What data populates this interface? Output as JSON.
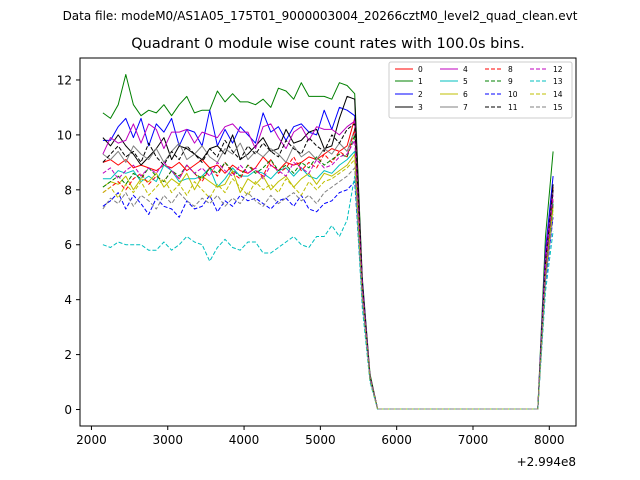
{
  "chart_data": {
    "type": "line",
    "suptitle": "Data file: modeM0/AS1A05_175T01_9000003004_20266cztM0_level2_quad_clean.evt",
    "title": "Quadrant 0 module wise count rates with 100.0s bins.",
    "xlabel": "",
    "ylabel": "",
    "x_offset_label": "+2.994e8",
    "xlim": [
      1850,
      8350
    ],
    "ylim": [
      -0.6,
      12.8
    ],
    "xticks": [
      2000,
      3000,
      4000,
      5000,
      6000,
      7000,
      8000
    ],
    "yticks": [
      0,
      2,
      4,
      6,
      8,
      10,
      12
    ],
    "legend_position": "top-right",
    "x": [
      2150,
      2250,
      2350,
      2450,
      2550,
      2650,
      2750,
      2850,
      2950,
      3050,
      3150,
      3250,
      3350,
      3450,
      3550,
      3650,
      3750,
      3850,
      3950,
      4050,
      4150,
      4250,
      4350,
      4450,
      4550,
      4650,
      4750,
      4850,
      4950,
      5050,
      5150,
      5250,
      5350,
      5450,
      5550,
      5650,
      5750,
      5850,
      5950,
      6050,
      6150,
      6250,
      6350,
      6450,
      6550,
      6650,
      6750,
      6850,
      6950,
      7050,
      7150,
      7250,
      7350,
      7450,
      7550,
      7650,
      7750,
      7850,
      7950,
      8050
    ],
    "series": [
      {
        "name": "0",
        "color": "#ff0000",
        "dash": false,
        "values": [
          9.0,
          9.1,
          8.9,
          9.1,
          8.8,
          8.9,
          8.8,
          8.7,
          8.9,
          8.8,
          9.0,
          8.7,
          8.9,
          9.1,
          8.8,
          8.9,
          8.6,
          8.9,
          8.7,
          8.6,
          8.8,
          9.2,
          8.9,
          8.7,
          9.0,
          8.9,
          9.0,
          9.2,
          9.1,
          9.3,
          9.5,
          9.4,
          9.6,
          10.6,
          4.5,
          1.2,
          0.02,
          0.02,
          0.02,
          0.02,
          0.02,
          0.02,
          0.02,
          0.02,
          0.02,
          0.02,
          0.02,
          0.02,
          0.02,
          0.02,
          0.02,
          0.02,
          0.02,
          0.02,
          0.02,
          0.02,
          0.02,
          0.02,
          5.2,
          8.1
        ]
      },
      {
        "name": "1",
        "color": "#008000",
        "dash": false,
        "values": [
          10.8,
          10.6,
          11.1,
          12.2,
          11.1,
          10.7,
          10.9,
          10.8,
          11.1,
          10.7,
          11.1,
          11.4,
          10.8,
          10.9,
          10.9,
          11.6,
          11.2,
          11.5,
          11.2,
          11.2,
          11.1,
          11.3,
          11.0,
          11.7,
          11.6,
          11.3,
          11.9,
          11.4,
          11.4,
          11.4,
          11.3,
          11.9,
          11.8,
          11.5,
          4.8,
          1.3,
          0.02,
          0.02,
          0.02,
          0.02,
          0.02,
          0.02,
          0.02,
          0.02,
          0.02,
          0.02,
          0.02,
          0.02,
          0.02,
          0.02,
          0.02,
          0.02,
          0.02,
          0.02,
          0.02,
          0.02,
          0.02,
          0.02,
          6.3,
          9.4
        ]
      },
      {
        "name": "2",
        "color": "#0000ff",
        "dash": false,
        "values": [
          9.8,
          9.8,
          10.3,
          10.6,
          9.9,
          10.6,
          9.6,
          10.4,
          10.1,
          10.6,
          9.6,
          10.2,
          10.1,
          9.6,
          10.9,
          9.6,
          10.2,
          9.7,
          10.3,
          10.0,
          9.7,
          10.8,
          10.1,
          10.3,
          9.8,
          10.3,
          10.4,
          10.1,
          10.0,
          10.9,
          10.2,
          11.0,
          10.9,
          10.7,
          4.7,
          1.2,
          0.02,
          0.02,
          0.02,
          0.02,
          0.02,
          0.02,
          0.02,
          0.02,
          0.02,
          0.02,
          0.02,
          0.02,
          0.02,
          0.02,
          0.02,
          0.02,
          0.02,
          0.02,
          0.02,
          0.02,
          0.02,
          0.02,
          5.8,
          8.5
        ]
      },
      {
        "name": "3",
        "color": "#000000",
        "dash": false,
        "values": [
          9.9,
          9.6,
          10.0,
          9.6,
          9.3,
          8.9,
          9.2,
          9.5,
          9.9,
          9.1,
          9.6,
          9.5,
          9.3,
          9.1,
          9.5,
          9.6,
          9.3,
          10.0,
          9.1,
          9.3,
          9.6,
          9.9,
          9.4,
          9.5,
          10.2,
          9.7,
          9.8,
          10.1,
          10.2,
          9.5,
          9.6,
          10.6,
          11.4,
          11.3,
          4.6,
          1.2,
          0.02,
          0.02,
          0.02,
          0.02,
          0.02,
          0.02,
          0.02,
          0.02,
          0.02,
          0.02,
          0.02,
          0.02,
          0.02,
          0.02,
          0.02,
          0.02,
          0.02,
          0.02,
          0.02,
          0.02,
          0.02,
          0.02,
          5.4,
          8.2
        ]
      },
      {
        "name": "4",
        "color": "#bf00bf",
        "dash": false,
        "values": [
          9.3,
          9.9,
          9.7,
          9.8,
          10.4,
          9.7,
          10.4,
          10.2,
          9.5,
          10.1,
          10.1,
          10.2,
          9.7,
          10.1,
          10.0,
          9.9,
          10.3,
          10.4,
          10.1,
          10.1,
          9.5,
          10.3,
          10.4,
          9.9,
          9.5,
          10.1,
          10.3,
          9.8,
          10.3,
          10.2,
          10.2,
          10.0,
          10.3,
          10.5,
          4.6,
          1.2,
          0.02,
          0.02,
          0.02,
          0.02,
          0.02,
          0.02,
          0.02,
          0.02,
          0.02,
          0.02,
          0.02,
          0.02,
          0.02,
          0.02,
          0.02,
          0.02,
          0.02,
          0.02,
          0.02,
          0.02,
          0.02,
          0.02,
          5.6,
          8.0
        ]
      },
      {
        "name": "5",
        "color": "#00bfbf",
        "dash": false,
        "values": [
          8.4,
          8.4,
          8.7,
          8.6,
          8.7,
          8.3,
          8.5,
          8.3,
          8.9,
          8.7,
          8.3,
          8.4,
          8.4,
          8.5,
          8.8,
          8.1,
          8.4,
          8.8,
          8.5,
          8.5,
          8.7,
          8.6,
          8.4,
          8.7,
          8.8,
          8.5,
          8.8,
          8.5,
          8.4,
          8.7,
          8.6,
          8.9,
          9.1,
          9.4,
          4.3,
          1.1,
          0.02,
          0.02,
          0.02,
          0.02,
          0.02,
          0.02,
          0.02,
          0.02,
          0.02,
          0.02,
          0.02,
          0.02,
          0.02,
          0.02,
          0.02,
          0.02,
          0.02,
          0.02,
          0.02,
          0.02,
          0.02,
          0.02,
          5.0,
          7.6
        ]
      },
      {
        "name": "6",
        "color": "#bfbf00",
        "dash": false,
        "values": [
          8.1,
          8.3,
          8.2,
          8.5,
          8.0,
          8.4,
          8.3,
          8.6,
          8.1,
          8.4,
          8.2,
          8.6,
          8.0,
          8.5,
          8.3,
          8.1,
          8.2,
          8.7,
          7.9,
          8.4,
          8.2,
          8.5,
          8.0,
          8.3,
          8.5,
          8.1,
          8.4,
          8.6,
          8.2,
          8.6,
          8.5,
          8.7,
          8.9,
          9.3,
          4.2,
          1.1,
          0.02,
          0.02,
          0.02,
          0.02,
          0.02,
          0.02,
          0.02,
          0.02,
          0.02,
          0.02,
          0.02,
          0.02,
          0.02,
          0.02,
          0.02,
          0.02,
          0.02,
          0.02,
          0.02,
          0.02,
          0.02,
          0.02,
          4.9,
          7.4
        ]
      },
      {
        "name": "7",
        "color": "#808080",
        "dash": false,
        "values": [
          9.3,
          9.1,
          9.4,
          9.0,
          9.6,
          9.3,
          9.1,
          9.5,
          9.0,
          9.4,
          9.7,
          9.1,
          9.3,
          9.6,
          9.2,
          9.0,
          9.5,
          9.3,
          9.7,
          9.1,
          9.4,
          9.2,
          9.5,
          9.3,
          9.0,
          9.6,
          9.2,
          9.4,
          9.1,
          9.5,
          9.3,
          9.7,
          9.4,
          10.2,
          4.5,
          1.2,
          0.02,
          0.02,
          0.02,
          0.02,
          0.02,
          0.02,
          0.02,
          0.02,
          0.02,
          0.02,
          0.02,
          0.02,
          0.02,
          0.02,
          0.02,
          0.02,
          0.02,
          0.02,
          0.02,
          0.02,
          0.02,
          0.02,
          5.3,
          7.9
        ]
      },
      {
        "name": "8",
        "color": "#ff0000",
        "dash": true,
        "values": [
          7.9,
          8.1,
          8.3,
          8.0,
          8.4,
          8.6,
          8.2,
          8.5,
          8.3,
          8.7,
          8.4,
          8.9,
          8.6,
          8.3,
          8.8,
          8.5,
          9.0,
          8.6,
          8.4,
          8.9,
          8.7,
          8.5,
          9.1,
          8.6,
          8.8,
          9.2,
          8.7,
          9.0,
          8.8,
          9.3,
          9.0,
          9.4,
          9.2,
          10.2,
          4.5,
          1.2,
          0.02,
          0.02,
          0.02,
          0.02,
          0.02,
          0.02,
          0.02,
          0.02,
          0.02,
          0.02,
          0.02,
          0.02,
          0.02,
          0.02,
          0.02,
          0.02,
          0.02,
          0.02,
          0.02,
          0.02,
          0.02,
          0.02,
          5.1,
          7.7
        ]
      },
      {
        "name": "9",
        "color": "#008000",
        "dash": true,
        "values": [
          8.1,
          8.3,
          8.5,
          8.2,
          8.6,
          8.4,
          8.8,
          8.5,
          8.3,
          8.7,
          8.5,
          8.9,
          8.6,
          8.4,
          8.8,
          8.6,
          9.0,
          8.7,
          8.5,
          8.9,
          8.6,
          8.8,
          9.1,
          8.7,
          8.9,
          8.6,
          9.0,
          8.8,
          9.2,
          8.9,
          9.1,
          9.3,
          9.2,
          10.0,
          4.4,
          1.2,
          0.02,
          0.02,
          0.02,
          0.02,
          0.02,
          0.02,
          0.02,
          0.02,
          0.02,
          0.02,
          0.02,
          0.02,
          0.02,
          0.02,
          0.02,
          0.02,
          0.02,
          0.02,
          0.02,
          0.02,
          0.02,
          0.02,
          5.0,
          7.5
        ]
      },
      {
        "name": "10",
        "color": "#0000ff",
        "dash": true,
        "values": [
          7.4,
          7.6,
          7.9,
          7.3,
          7.8,
          7.5,
          7.1,
          7.7,
          7.4,
          7.3,
          7.0,
          7.6,
          7.3,
          7.4,
          7.8,
          7.2,
          7.6,
          7.4,
          7.8,
          7.6,
          7.7,
          7.5,
          7.3,
          7.6,
          7.7,
          7.4,
          7.8,
          7.3,
          7.2,
          7.5,
          7.6,
          7.9,
          8.0,
          8.3,
          4.0,
          1.1,
          0.02,
          0.02,
          0.02,
          0.02,
          0.02,
          0.02,
          0.02,
          0.02,
          0.02,
          0.02,
          0.02,
          0.02,
          0.02,
          0.02,
          0.02,
          0.02,
          0.02,
          0.02,
          0.02,
          0.02,
          0.02,
          0.02,
          4.6,
          7.0
        ]
      },
      {
        "name": "11",
        "color": "#000000",
        "dash": true,
        "values": [
          9.0,
          9.3,
          9.6,
          9.2,
          9.4,
          9.0,
          9.7,
          9.2,
          8.9,
          9.4,
          9.1,
          9.6,
          9.3,
          9.0,
          9.5,
          9.2,
          9.8,
          9.4,
          9.1,
          9.6,
          9.3,
          9.7,
          9.4,
          9.2,
          9.8,
          9.5,
          9.3,
          9.9,
          9.6,
          9.4,
          10.0,
          9.7,
          10.2,
          10.4,
          4.6,
          1.2,
          0.02,
          0.02,
          0.02,
          0.02,
          0.02,
          0.02,
          0.02,
          0.02,
          0.02,
          0.02,
          0.02,
          0.02,
          0.02,
          0.02,
          0.02,
          0.02,
          0.02,
          0.02,
          0.02,
          0.02,
          0.02,
          0.02,
          5.4,
          8.0
        ]
      },
      {
        "name": "12",
        "color": "#bf00bf",
        "dash": true,
        "values": [
          8.6,
          8.8,
          8.4,
          8.7,
          8.9,
          8.5,
          8.8,
          8.6,
          9.0,
          8.7,
          8.4,
          8.9,
          8.6,
          8.8,
          8.5,
          9.0,
          8.7,
          8.5,
          8.9,
          8.6,
          8.8,
          8.4,
          8.9,
          8.7,
          8.5,
          9.0,
          8.8,
          8.6,
          9.1,
          8.8,
          8.9,
          9.2,
          9.3,
          9.8,
          4.4,
          1.2,
          0.02,
          0.02,
          0.02,
          0.02,
          0.02,
          0.02,
          0.02,
          0.02,
          0.02,
          0.02,
          0.02,
          0.02,
          0.02,
          0.02,
          0.02,
          0.02,
          0.02,
          0.02,
          0.02,
          0.02,
          0.02,
          0.02,
          5.2,
          7.8
        ]
      },
      {
        "name": "13",
        "color": "#00bfbf",
        "dash": true,
        "values": [
          6.0,
          5.9,
          6.1,
          6.0,
          6.0,
          6.0,
          5.8,
          5.8,
          6.1,
          5.8,
          6.0,
          6.3,
          6.1,
          6.0,
          5.4,
          5.9,
          6.2,
          5.9,
          5.8,
          6.1,
          6.1,
          5.7,
          5.7,
          5.9,
          6.1,
          6.3,
          6.0,
          5.9,
          6.3,
          6.3,
          6.7,
          6.3,
          6.9,
          8.5,
          3.7,
          1.0,
          0.02,
          0.02,
          0.02,
          0.02,
          0.02,
          0.02,
          0.02,
          0.02,
          0.02,
          0.02,
          0.02,
          0.02,
          0.02,
          0.02,
          0.02,
          0.02,
          0.02,
          0.02,
          0.02,
          0.02,
          0.02,
          0.02,
          4.3,
          6.5
        ]
      },
      {
        "name": "14",
        "color": "#bfbf00",
        "dash": true,
        "values": [
          7.9,
          8.1,
          7.7,
          8.2,
          7.9,
          8.3,
          7.8,
          8.1,
          8.4,
          7.9,
          8.2,
          7.8,
          8.3,
          8.0,
          7.7,
          8.2,
          7.9,
          8.4,
          8.1,
          7.8,
          8.3,
          8.0,
          8.2,
          7.9,
          8.4,
          8.1,
          7.8,
          8.3,
          8.0,
          8.3,
          8.4,
          8.6,
          8.8,
          9.1,
          4.1,
          1.1,
          0.02,
          0.02,
          0.02,
          0.02,
          0.02,
          0.02,
          0.02,
          0.02,
          0.02,
          0.02,
          0.02,
          0.02,
          0.02,
          0.02,
          0.02,
          0.02,
          0.02,
          0.02,
          0.02,
          0.02,
          0.02,
          0.02,
          4.8,
          7.3
        ]
      },
      {
        "name": "15",
        "color": "#808080",
        "dash": true,
        "values": [
          7.3,
          7.7,
          7.5,
          7.9,
          7.4,
          7.8,
          7.6,
          7.3,
          7.8,
          7.5,
          7.9,
          7.6,
          7.4,
          7.7,
          7.5,
          7.8,
          7.4,
          7.7,
          7.5,
          7.9,
          7.6,
          7.4,
          7.8,
          7.5,
          7.7,
          7.9,
          7.6,
          7.8,
          7.5,
          7.9,
          8.1,
          8.3,
          8.5,
          8.8,
          4.0,
          1.1,
          0.02,
          0.02,
          0.02,
          0.02,
          0.02,
          0.02,
          0.02,
          0.02,
          0.02,
          0.02,
          0.02,
          0.02,
          0.02,
          0.02,
          0.02,
          0.02,
          0.02,
          0.02,
          0.02,
          0.02,
          0.02,
          0.02,
          4.7,
          7.1
        ]
      }
    ]
  }
}
